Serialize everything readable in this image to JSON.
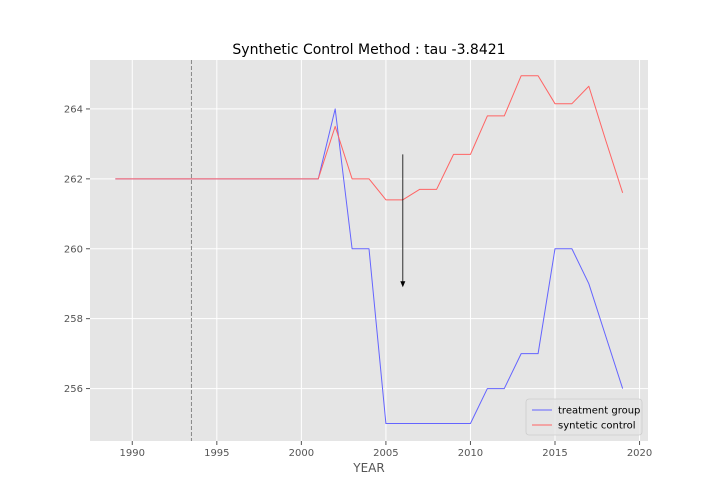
{
  "chart_data": {
    "type": "line",
    "title": "Synthetic Control Method : tau -3.8421",
    "xlabel": "YEAR",
    "ylabel": "",
    "xlim": [
      1987.5,
      2020.5
    ],
    "ylim": [
      254.5,
      265.4
    ],
    "xticks": [
      1990,
      1995,
      2000,
      2005,
      2010,
      2015,
      2020
    ],
    "yticks": [
      256,
      258,
      260,
      262,
      264
    ],
    "grid": true,
    "legend_position": "lower-right",
    "colors": {
      "background": "#e5e5e5",
      "grid": "#ffffff"
    },
    "vline": {
      "x": 1993.5,
      "color": "#888888",
      "style": "dashed"
    },
    "arrow": {
      "x": 2006,
      "y_start": 262.7,
      "y_end": 258.9,
      "color": "#000000"
    },
    "x": [
      1989,
      1990,
      1991,
      1992,
      1993,
      1994,
      1995,
      1996,
      1997,
      1998,
      1999,
      2000,
      2001,
      2002,
      2003,
      2004,
      2005,
      2006,
      2007,
      2008,
      2009,
      2010,
      2011,
      2012,
      2013,
      2014,
      2015,
      2016,
      2017,
      2018,
      2019
    ],
    "series": [
      {
        "name": "treatment group",
        "color": "#6464ff",
        "values": [
          262,
          262,
          262,
          262,
          262,
          262,
          262,
          262,
          262,
          262,
          262,
          262,
          262,
          264,
          260,
          260,
          255,
          255,
          255,
          255,
          255,
          255,
          256,
          256,
          257,
          257,
          260,
          260,
          259,
          257.5,
          256
        ]
      },
      {
        "name": "syntetic control",
        "color": "#ff6464",
        "values": [
          262,
          262,
          262,
          262,
          262,
          262,
          262,
          262,
          262,
          262,
          262,
          262,
          262,
          263.5,
          262,
          262,
          261.4,
          261.4,
          261.7,
          261.7,
          262.7,
          262.7,
          263.8,
          263.8,
          264.95,
          264.95,
          264.15,
          264.15,
          264.65,
          263.1,
          261.6
        ]
      }
    ]
  }
}
